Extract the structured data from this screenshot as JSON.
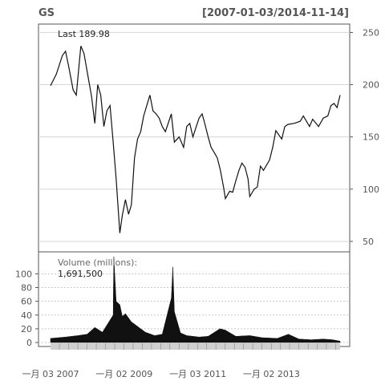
{
  "chart_data": {
    "type": "line",
    "title": "GS",
    "date_range_label": "[2007-01-03/2014-11-14]",
    "x_tick_labels": [
      "一月 03 2007",
      "一月 02 2009",
      "一月 03 2011",
      "一月 02 2013"
    ],
    "price_panel": {
      "last_label": "Last 189.98",
      "ylim": [
        40,
        258
      ],
      "y_ticks": [
        50,
        100,
        150,
        200,
        250
      ],
      "grid": true,
      "series": {
        "x": [
          "2007-01-03",
          "2007-03-01",
          "2007-05-01",
          "2007-06-01",
          "2007-07-01",
          "2007-08-15",
          "2007-09-15",
          "2007-10-31",
          "2007-12-01",
          "2008-01-15",
          "2008-02-15",
          "2008-03-17",
          "2008-04-15",
          "2008-05-15",
          "2008-06-15",
          "2008-07-15",
          "2008-08-15",
          "2008-09-15",
          "2008-10-15",
          "2008-11-20",
          "2008-12-15",
          "2009-01-15",
          "2009-02-15",
          "2009-03-15",
          "2009-04-15",
          "2009-05-15",
          "2009-06-15",
          "2009-07-15",
          "2009-08-15",
          "2009-09-15",
          "2009-10-15",
          "2009-11-15",
          "2009-12-15",
          "2010-01-15",
          "2010-02-15",
          "2010-04-15",
          "2010-05-15",
          "2010-07-01",
          "2010-08-15",
          "2010-09-15",
          "2010-10-15",
          "2010-11-15",
          "2011-01-15",
          "2011-02-15",
          "2011-03-15",
          "2011-04-15",
          "2011-05-15",
          "2011-06-15",
          "2011-07-15",
          "2011-08-15",
          "2011-09-15",
          "2011-10-03",
          "2011-11-15",
          "2011-12-15",
          "2012-01-15",
          "2012-02-15",
          "2012-03-15",
          "2012-04-15",
          "2012-05-15",
          "2012-06-01",
          "2012-07-15",
          "2012-08-15",
          "2012-09-15",
          "2012-10-15",
          "2012-12-15",
          "2013-01-15",
          "2013-02-15",
          "2013-04-15",
          "2013-05-15",
          "2013-06-15",
          "2013-08-15",
          "2013-10-15",
          "2013-11-15",
          "2014-01-15",
          "2014-02-15",
          "2014-04-15",
          "2014-06-01",
          "2014-07-15",
          "2014-08-15",
          "2014-09-15",
          "2014-10-15",
          "2014-11-14"
        ],
        "y": [
          199,
          210,
          228,
          232,
          218,
          195,
          190,
          237,
          230,
          205,
          188,
          163,
          200,
          190,
          160,
          175,
          180,
          145,
          110,
          58,
          75,
          90,
          76,
          85,
          130,
          148,
          155,
          170,
          180,
          190,
          175,
          172,
          168,
          160,
          155,
          172,
          145,
          150,
          140,
          160,
          163,
          150,
          168,
          172,
          162,
          150,
          140,
          135,
          130,
          118,
          102,
          91,
          98,
          97,
          108,
          118,
          125,
          121,
          110,
          93,
          100,
          102,
          122,
          118,
          128,
          140,
          156,
          148,
          160,
          162,
          163,
          165,
          170,
          160,
          167,
          160,
          168,
          170,
          180,
          182,
          178,
          190
        ]
      }
    },
    "volume_panel": {
      "label": "Volume (millions):",
      "last_value": "1,691,500",
      "ylim": [
        0,
        125
      ],
      "y_ticks": [
        0,
        20,
        40,
        60,
        80,
        100
      ],
      "series": {
        "x": [
          "2007-01-03",
          "2007-06-01",
          "2007-10-01",
          "2008-01-01",
          "2008-03-17",
          "2008-06-01",
          "2008-09-15",
          "2008-09-22",
          "2008-10-15",
          "2008-11-20",
          "2008-12-15",
          "2009-01-15",
          "2009-03-15",
          "2009-05-01",
          "2009-06-15",
          "2009-08-01",
          "2009-11-01",
          "2010-01-15",
          "2010-04-16",
          "2010-04-30",
          "2010-05-15",
          "2010-07-15",
          "2010-09-15",
          "2011-01-15",
          "2011-04-15",
          "2011-08-10",
          "2011-10-03",
          "2012-01-15",
          "2012-06-01",
          "2012-10-01",
          "2013-03-01",
          "2013-06-20",
          "2013-10-01",
          "2014-02-01",
          "2014-06-01",
          "2014-09-01",
          "2014-11-14"
        ],
        "y": [
          6,
          8,
          10,
          12,
          22,
          15,
          40,
          125,
          60,
          55,
          38,
          42,
          30,
          25,
          20,
          15,
          10,
          12,
          65,
          110,
          45,
          14,
          10,
          8,
          9,
          20,
          18,
          9,
          10,
          7,
          6,
          12,
          5,
          4,
          5,
          4,
          2
        ]
      }
    }
  }
}
